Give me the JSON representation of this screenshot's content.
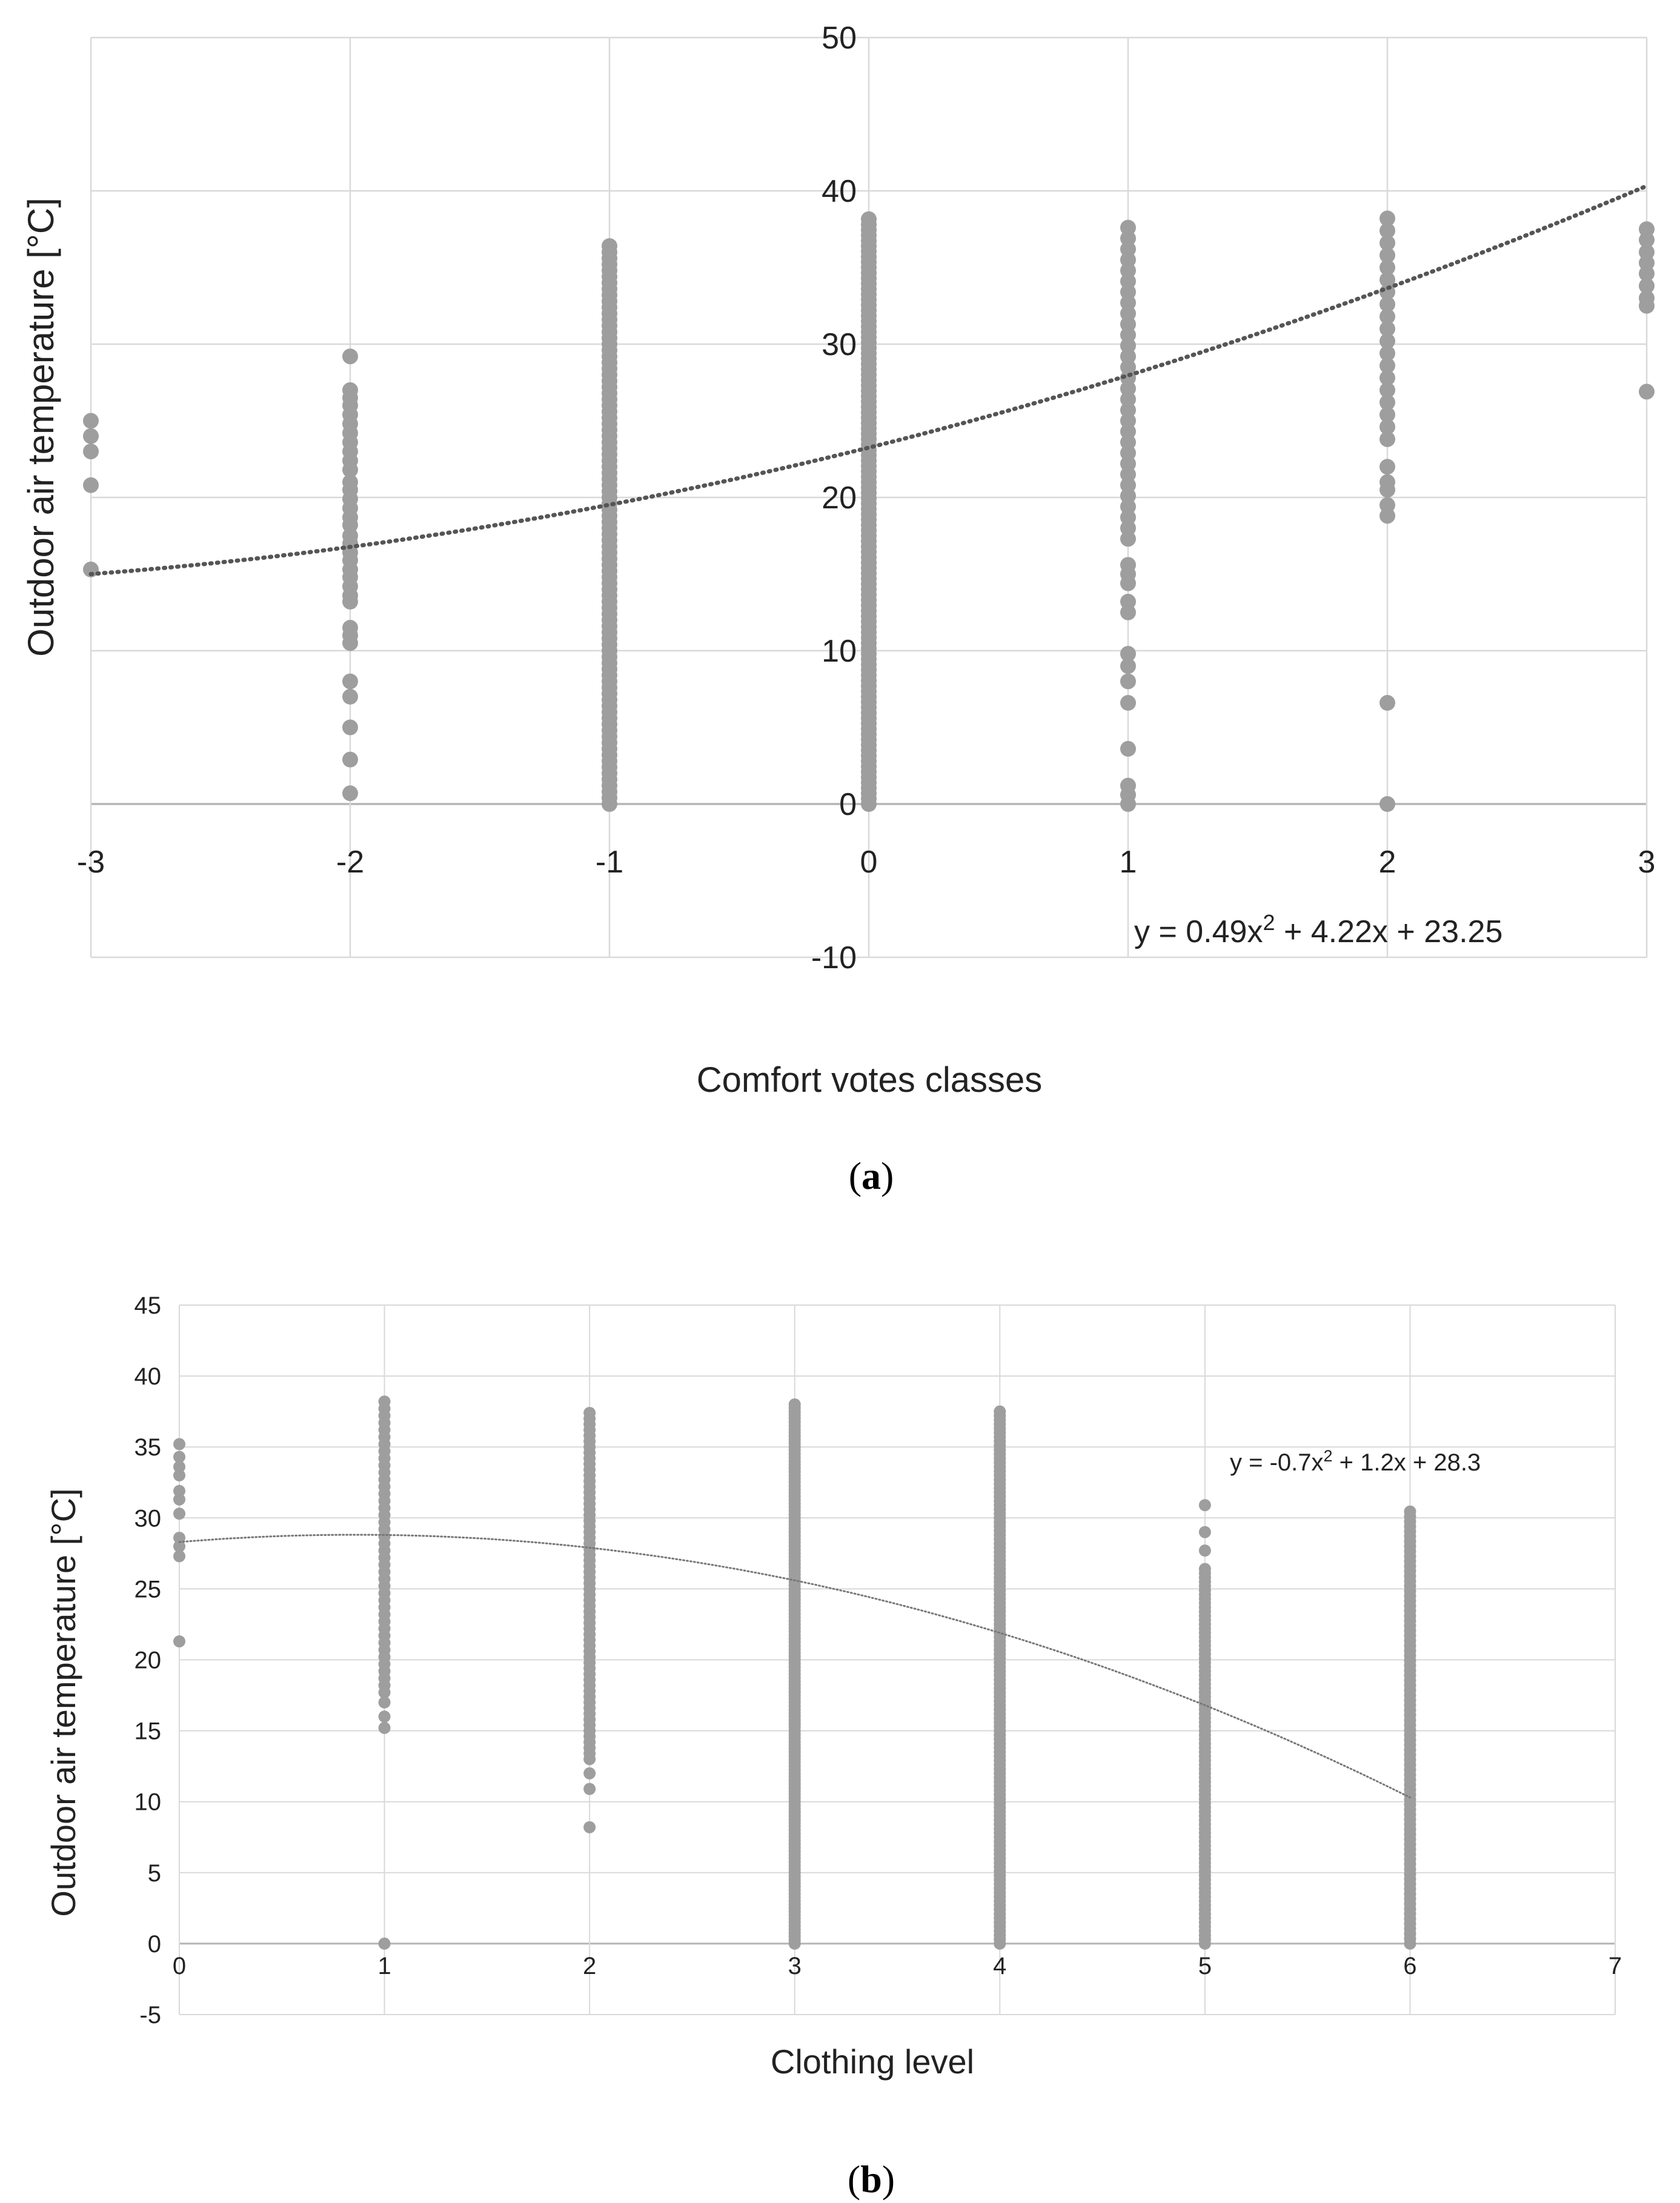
{
  "chart_data": [
    {
      "type": "scatter",
      "panel_label": {
        "open": "(",
        "letter": "a",
        "close": ")"
      },
      "xlabel": "Comfort votes classes",
      "ylabel": "Outdoor air temperature [°C]",
      "xlim": [
        -3,
        3
      ],
      "ylim": [
        -10,
        50
      ],
      "x_ticks": [
        "-3",
        "-2",
        "-1",
        "0",
        "1",
        "2",
        "3"
      ],
      "y_ticks": [
        "-10",
        "0",
        "10",
        "20",
        "30",
        "40",
        "50"
      ],
      "grid": true,
      "marker_color": "#9e9e9e",
      "trend_color": "#555555",
      "trendline": {
        "kind": "polynomial",
        "coefficients": [
          0.49,
          4.22,
          23.25
        ],
        "x_range": [
          -3,
          3
        ]
      },
      "equation": {
        "prefix": "y = 0.49x",
        "exp": "2",
        "suffix": " + 4.22x + 23.25"
      },
      "series": [
        {
          "x": -3,
          "y": [
            25.0,
            24.0,
            23.0,
            20.8,
            15.3
          ]
        },
        {
          "x": -2,
          "y": [
            29.2,
            27.0,
            26.5,
            26.0,
            25.4,
            24.8,
            24.2,
            23.6,
            23.0,
            22.4,
            21.8,
            21.0,
            20.5,
            19.9,
            19.3,
            18.7,
            18.2,
            17.5,
            17.0,
            16.4,
            15.9,
            15.3,
            14.8,
            14.2,
            13.6,
            13.2,
            11.5,
            11.0,
            10.5,
            8.0,
            7.0,
            5.0,
            2.9,
            0.7
          ]
        },
        {
          "x": -1,
          "y_range": [
            0,
            36.4
          ],
          "step": 0.4
        },
        {
          "x": 0,
          "y_range": [
            0,
            38.2
          ],
          "step": 0.35
        },
        {
          "x": 1,
          "y": [
            37.6,
            36.9,
            36.2,
            35.5,
            34.8,
            34.1,
            33.4,
            32.7,
            32.0,
            31.3,
            30.6,
            29.9,
            29.2,
            28.5,
            27.8,
            27.1,
            26.4,
            25.7,
            25.0,
            24.3,
            23.6,
            22.9,
            22.2,
            21.5,
            20.8,
            20.1,
            19.4,
            18.7,
            18.0,
            17.3,
            15.6,
            15.0,
            14.4,
            13.2,
            12.5,
            9.8,
            9.0,
            8.0,
            6.6,
            3.6,
            1.2,
            0.6,
            0.0
          ]
        },
        {
          "x": 2,
          "y": [
            38.2,
            37.4,
            36.6,
            35.8,
            35.0,
            34.2,
            33.4,
            32.6,
            31.8,
            31.0,
            30.2,
            29.4,
            28.6,
            27.8,
            27.0,
            26.2,
            25.4,
            24.6,
            23.8,
            22.0,
            21.0,
            20.5,
            19.5,
            18.8,
            6.6,
            0.0
          ]
        },
        {
          "x": 3,
          "y": [
            37.5,
            36.8,
            36.0,
            35.3,
            34.6,
            33.8,
            33.0,
            32.5,
            26.9
          ]
        }
      ]
    },
    {
      "type": "scatter",
      "panel_label": {
        "open": "(",
        "letter": "b",
        "close": ")"
      },
      "xlabel": "Clothing level",
      "ylabel": "Outdoor air temperature [°C]",
      "xlim": [
        0,
        7
      ],
      "ylim": [
        -5,
        45
      ],
      "x_ticks": [
        "0",
        "1",
        "2",
        "3",
        "4",
        "5",
        "6",
        "7"
      ],
      "y_ticks": [
        "-5",
        "0",
        "5",
        "10",
        "15",
        "20",
        "25",
        "30",
        "35",
        "40",
        "45"
      ],
      "grid": true,
      "marker_color": "#9e9e9e",
      "trend_color": "#777777",
      "trendline": {
        "kind": "polynomial",
        "coefficients": [
          -0.7,
          1.2,
          28.3
        ],
        "x_range": [
          0,
          6
        ]
      },
      "equation": {
        "prefix": "y = -0.7x",
        "exp": "2",
        "suffix": " + 1.2x + 28.3"
      },
      "series": [
        {
          "x": 0,
          "y": [
            35.2,
            34.3,
            33.6,
            33.0,
            31.9,
            31.3,
            30.3,
            28.6,
            28.0,
            27.3,
            21.3
          ]
        },
        {
          "x": 1,
          "y": [
            38.2,
            37.7,
            37.2,
            36.7,
            36.2,
            35.7,
            35.2,
            34.7,
            34.2,
            33.7,
            33.2,
            32.7,
            32.2,
            31.7,
            31.2,
            30.7,
            30.2,
            29.7,
            29.2,
            28.7,
            28.2,
            27.7,
            27.2,
            26.7,
            26.2,
            25.7,
            25.2,
            24.7,
            24.2,
            23.7,
            23.2,
            22.7,
            22.2,
            21.7,
            21.2,
            20.7,
            20.2,
            19.7,
            19.2,
            18.7,
            18.2,
            17.7,
            17.0,
            16.0,
            15.2,
            0.0
          ]
        },
        {
          "x": 2,
          "y_range": [
            13.0,
            37.5
          ],
          "step": 0.4,
          "extra": [
            12.0,
            10.9,
            8.2
          ]
        },
        {
          "x": 3,
          "y_range": [
            0,
            38.1
          ],
          "step": 0.25
        },
        {
          "x": 4,
          "y_range": [
            0,
            37.5
          ],
          "step": 0.3
        },
        {
          "x": 5,
          "y_range": [
            0,
            26.5
          ],
          "step": 0.3,
          "extra": [
            30.9,
            29.0,
            27.7
          ]
        },
        {
          "x": 6,
          "y_range": [
            0,
            30.5
          ],
          "step": 0.35
        }
      ]
    }
  ]
}
